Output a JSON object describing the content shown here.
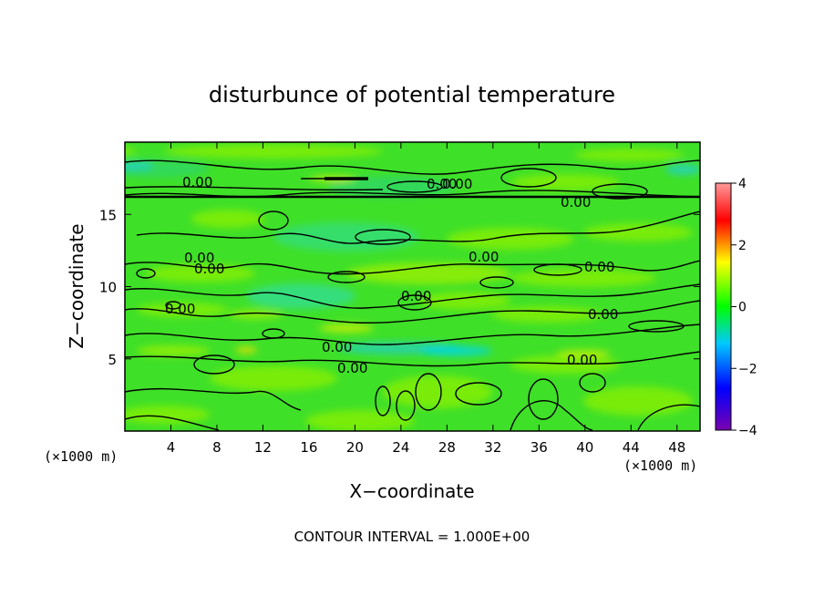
{
  "chart_data": {
    "type": "heatmap",
    "title": "disturbunce of potential temperature",
    "xlabel": "X−coordinate",
    "ylabel": "Z−coordinate",
    "x_unit_label": "(×1000 m)",
    "z_unit_label": "(×1000 m)",
    "xlim": [
      0,
      50
    ],
    "ylim": [
      0,
      20
    ],
    "x_ticks": [
      4,
      8,
      12,
      16,
      20,
      24,
      28,
      32,
      36,
      40,
      44,
      48
    ],
    "y_ticks": [
      5,
      10,
      15
    ],
    "colorbar": {
      "range": [
        -4,
        4
      ],
      "ticks": [
        4,
        2,
        0,
        -2,
        -4
      ],
      "colors": [
        "#7a00b0",
        "#0000ff",
        "#00c8ff",
        "#00ff00",
        "#ffff00",
        "#ff0000",
        "#ff9a9a"
      ]
    },
    "contour_labels": [
      "0.00",
      "0.00",
      "0.00",
      "0.00",
      "0.00",
      "0.00",
      "0.00",
      "0.00",
      "0.00",
      "0.00",
      "0.00",
      "0.00",
      "0.00",
      "0.00"
    ],
    "footnote": "CONTOUR INTERVAL = 1.000E+00"
  }
}
